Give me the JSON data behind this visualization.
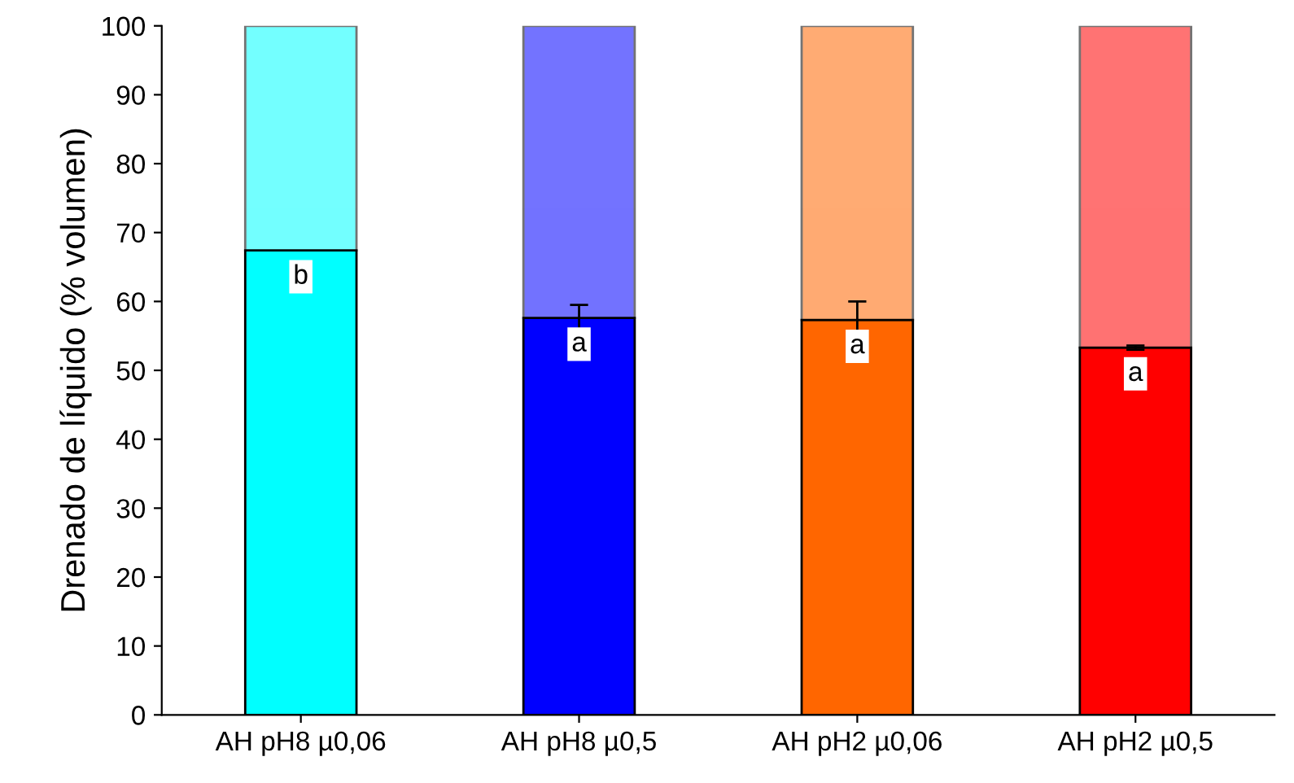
{
  "chart_data": {
    "type": "bar",
    "stacked": true,
    "ylabel": "Drenado de líquido (% volumen)",
    "categories": [
      "AH pH8 µ0,06",
      "AH pH8 µ0,5",
      "AH pH2 µ0,06",
      "AH pH2 µ0,5"
    ],
    "series": [
      {
        "colors": [
          "#00ffff",
          "#0000ff",
          "#ff6600",
          "#ff0000"
        ],
        "values": [
          67.4,
          57.6,
          57.3,
          53.3
        ],
        "errors": [
          null,
          1.9,
          2.7,
          0.3
        ]
      },
      {
        "colors": [
          "#00ffff",
          "#0000ff",
          "#ff6600",
          "#ff0000"
        ],
        "values": [
          32.6,
          42.4,
          42.7,
          46.7
        ]
      }
    ],
    "ylim": [
      0,
      100
    ],
    "yticks": [
      0,
      10,
      20,
      30,
      40,
      50,
      60,
      70,
      80,
      90,
      100
    ],
    "grid": false,
    "legend": false,
    "annotations": [
      {
        "text": "b",
        "x": "AH pH8 µ0,06",
        "y": 67.4
      },
      {
        "text": "a",
        "x": "AH pH8 µ0,5",
        "y": 57.6
      },
      {
        "text": "a",
        "x": "AH pH2 µ0,06",
        "y": 57.3
      },
      {
        "text": "a",
        "x": "AH pH2 µ0,5",
        "y": 53.3
      }
    ]
  }
}
